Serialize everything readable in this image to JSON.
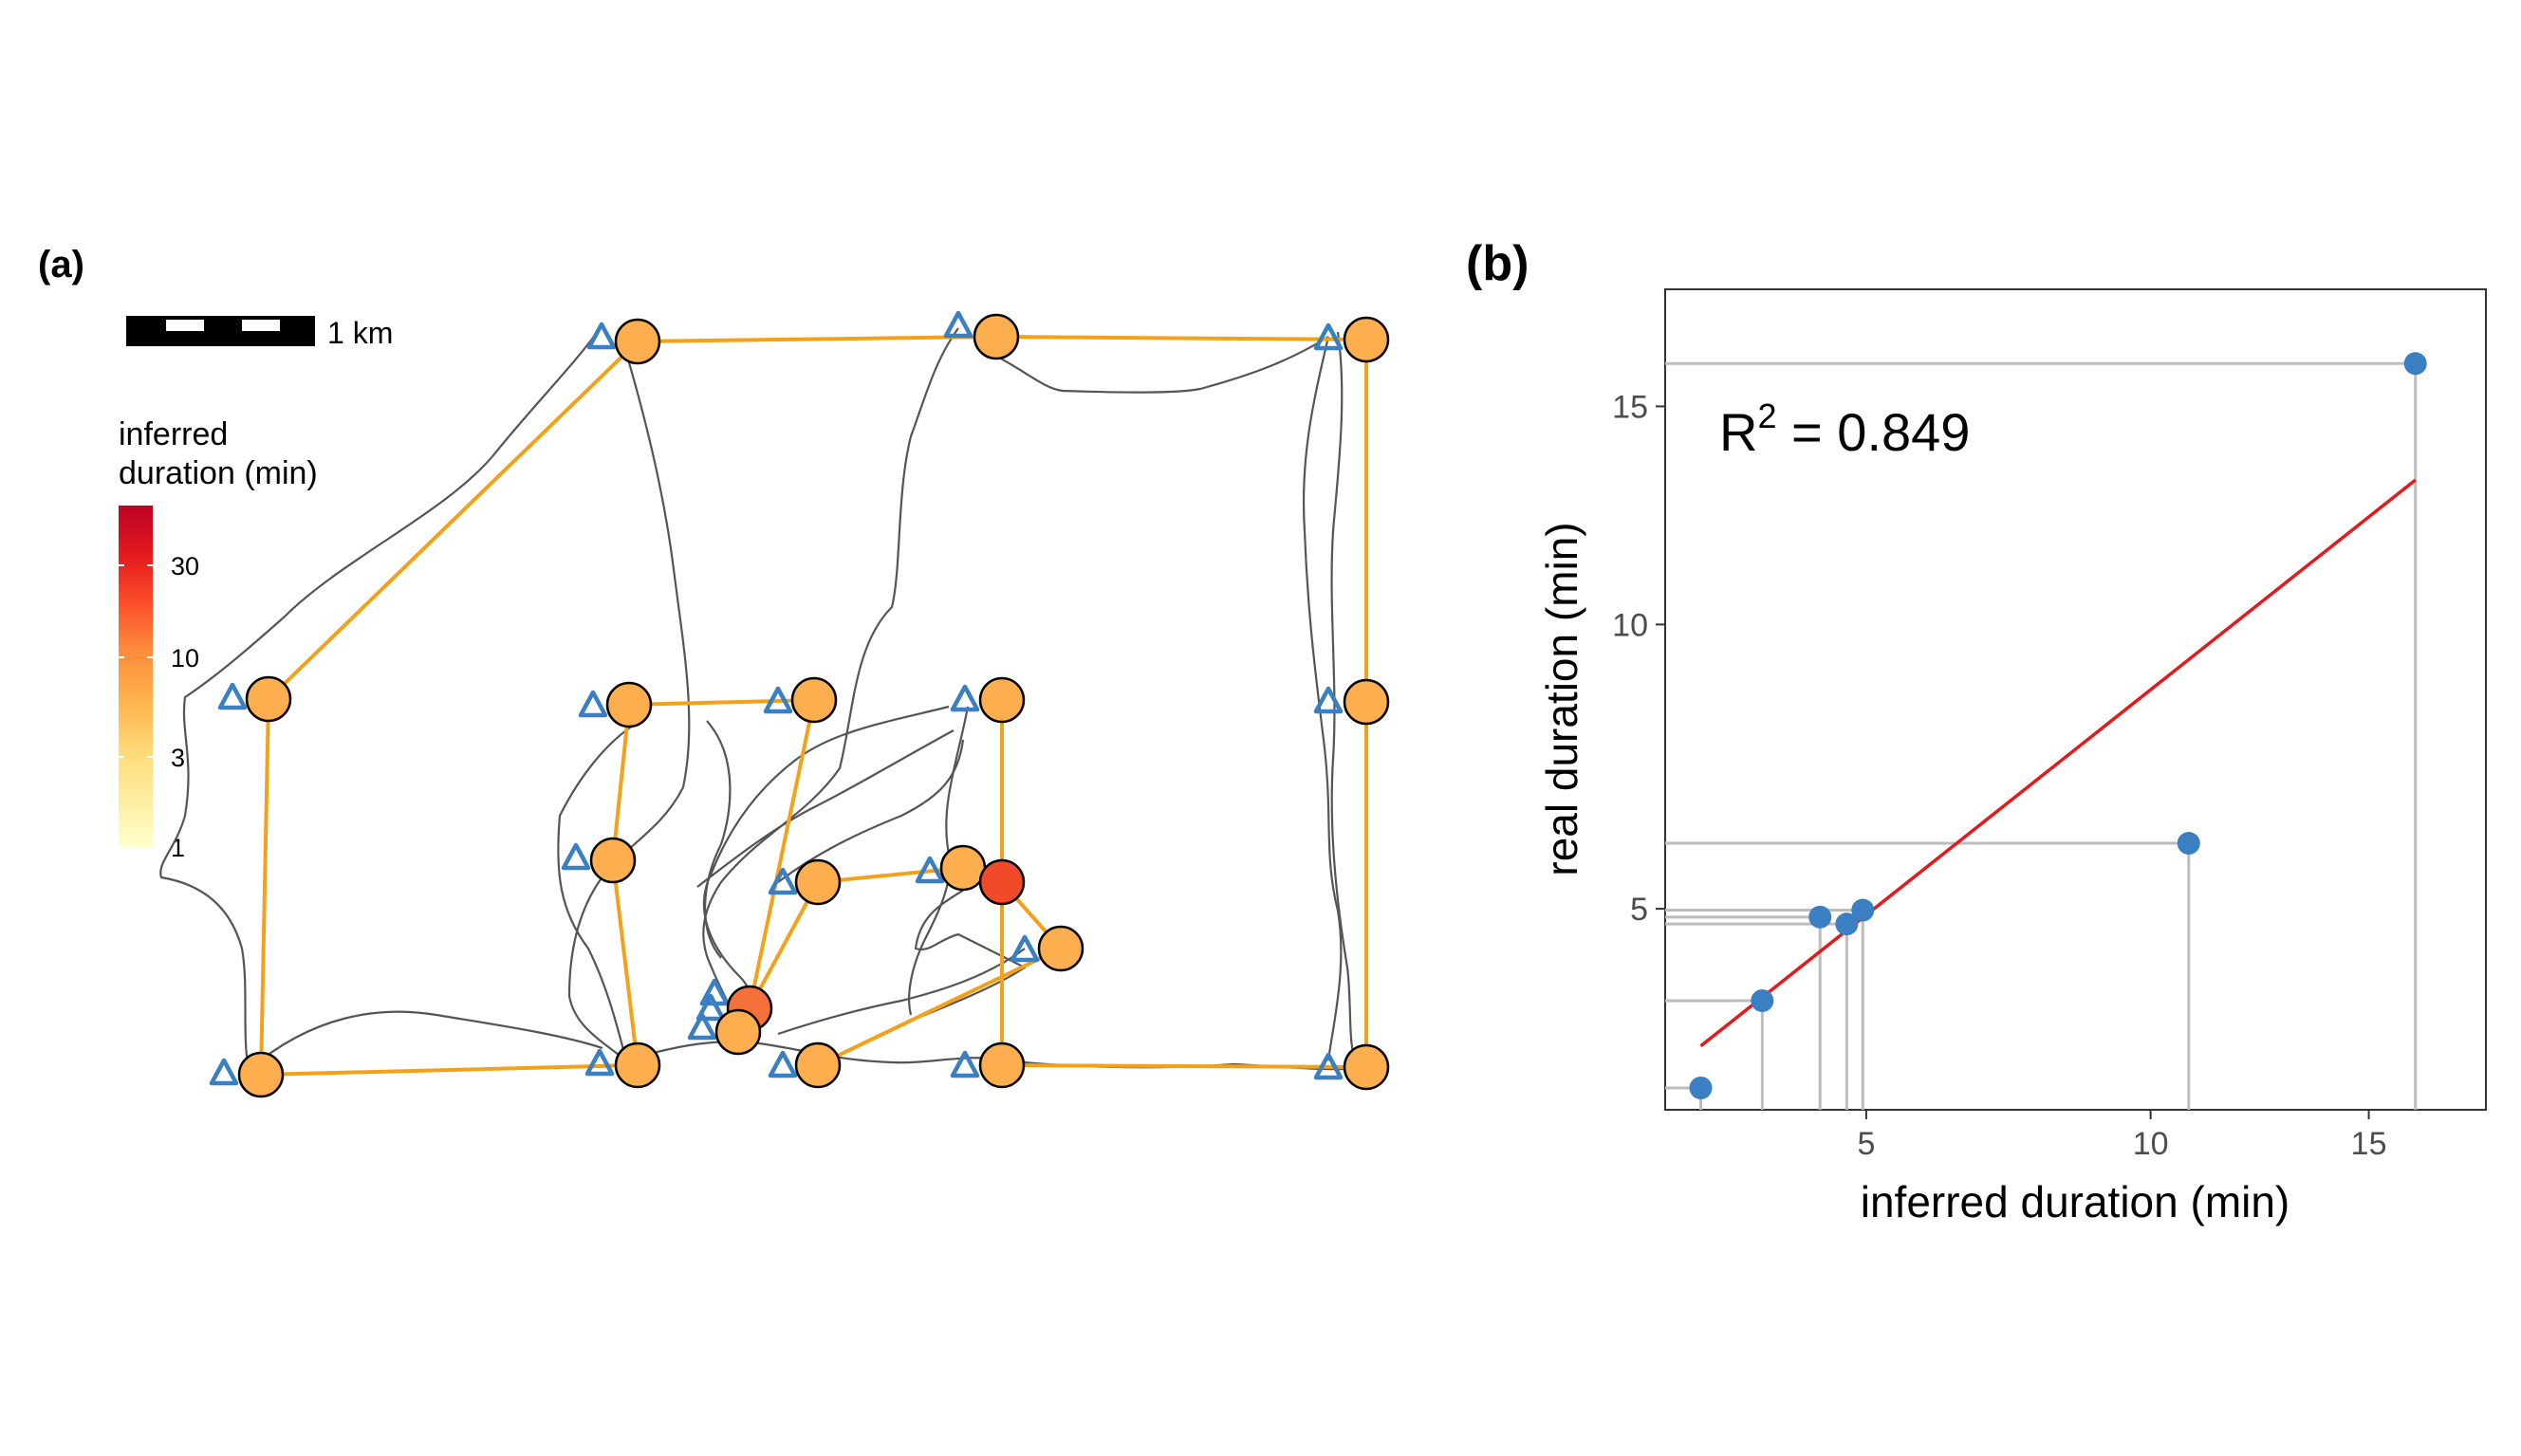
{
  "panel_a": {
    "label": "(a)",
    "scalebar_label": "1 km",
    "legend_title_line1": "inferred",
    "legend_title_line2": "duration (min)",
    "legend_ticks": [
      "30",
      "10",
      "3",
      "1"
    ],
    "legend_gradient": [
      "#ffffcc",
      "#ffeda0",
      "#fed976",
      "#feb24c",
      "#fd8d3c",
      "#fc4e2a",
      "#e31a1c",
      "#bd0026"
    ],
    "colors": {
      "track": "#555555",
      "route": "#f4a11a",
      "triangle": "#3a7fc1"
    }
  },
  "chart_data": {
    "type": "scatter",
    "panel_label": "(b)",
    "xlabel": "inferred duration (min)",
    "ylabel": "real duration (min)",
    "x_scale": "sqrt",
    "y_scale": "sqrt",
    "xlim": [
      2.5,
      18.1
    ],
    "ylim": [
      2.5,
      18.1
    ],
    "x_ticks": [
      5,
      10,
      15
    ],
    "y_ticks": [
      5,
      10,
      15
    ],
    "annotation": {
      "base": "R",
      "sup": "2",
      "rest": " = 0.849"
    },
    "points": [
      {
        "x": 2.88,
        "y": 2.73
      },
      {
        "x": 3.6,
        "y": 3.75
      },
      {
        "x": 4.35,
        "y": 4.88
      },
      {
        "x": 4.72,
        "y": 4.78
      },
      {
        "x": 4.95,
        "y": 4.98
      },
      {
        "x": 10.8,
        "y": 6.0
      },
      {
        "x": 16.2,
        "y": 16.1
      }
    ],
    "fit_line": {
      "x": [
        2.88,
        16.2
      ],
      "y": [
        3.2,
        13.2
      ]
    },
    "colors": {
      "points": "#3a7fc1",
      "fit": "#e31a1c",
      "rug": "#bdbdbd",
      "panel_border": "#333333"
    }
  }
}
